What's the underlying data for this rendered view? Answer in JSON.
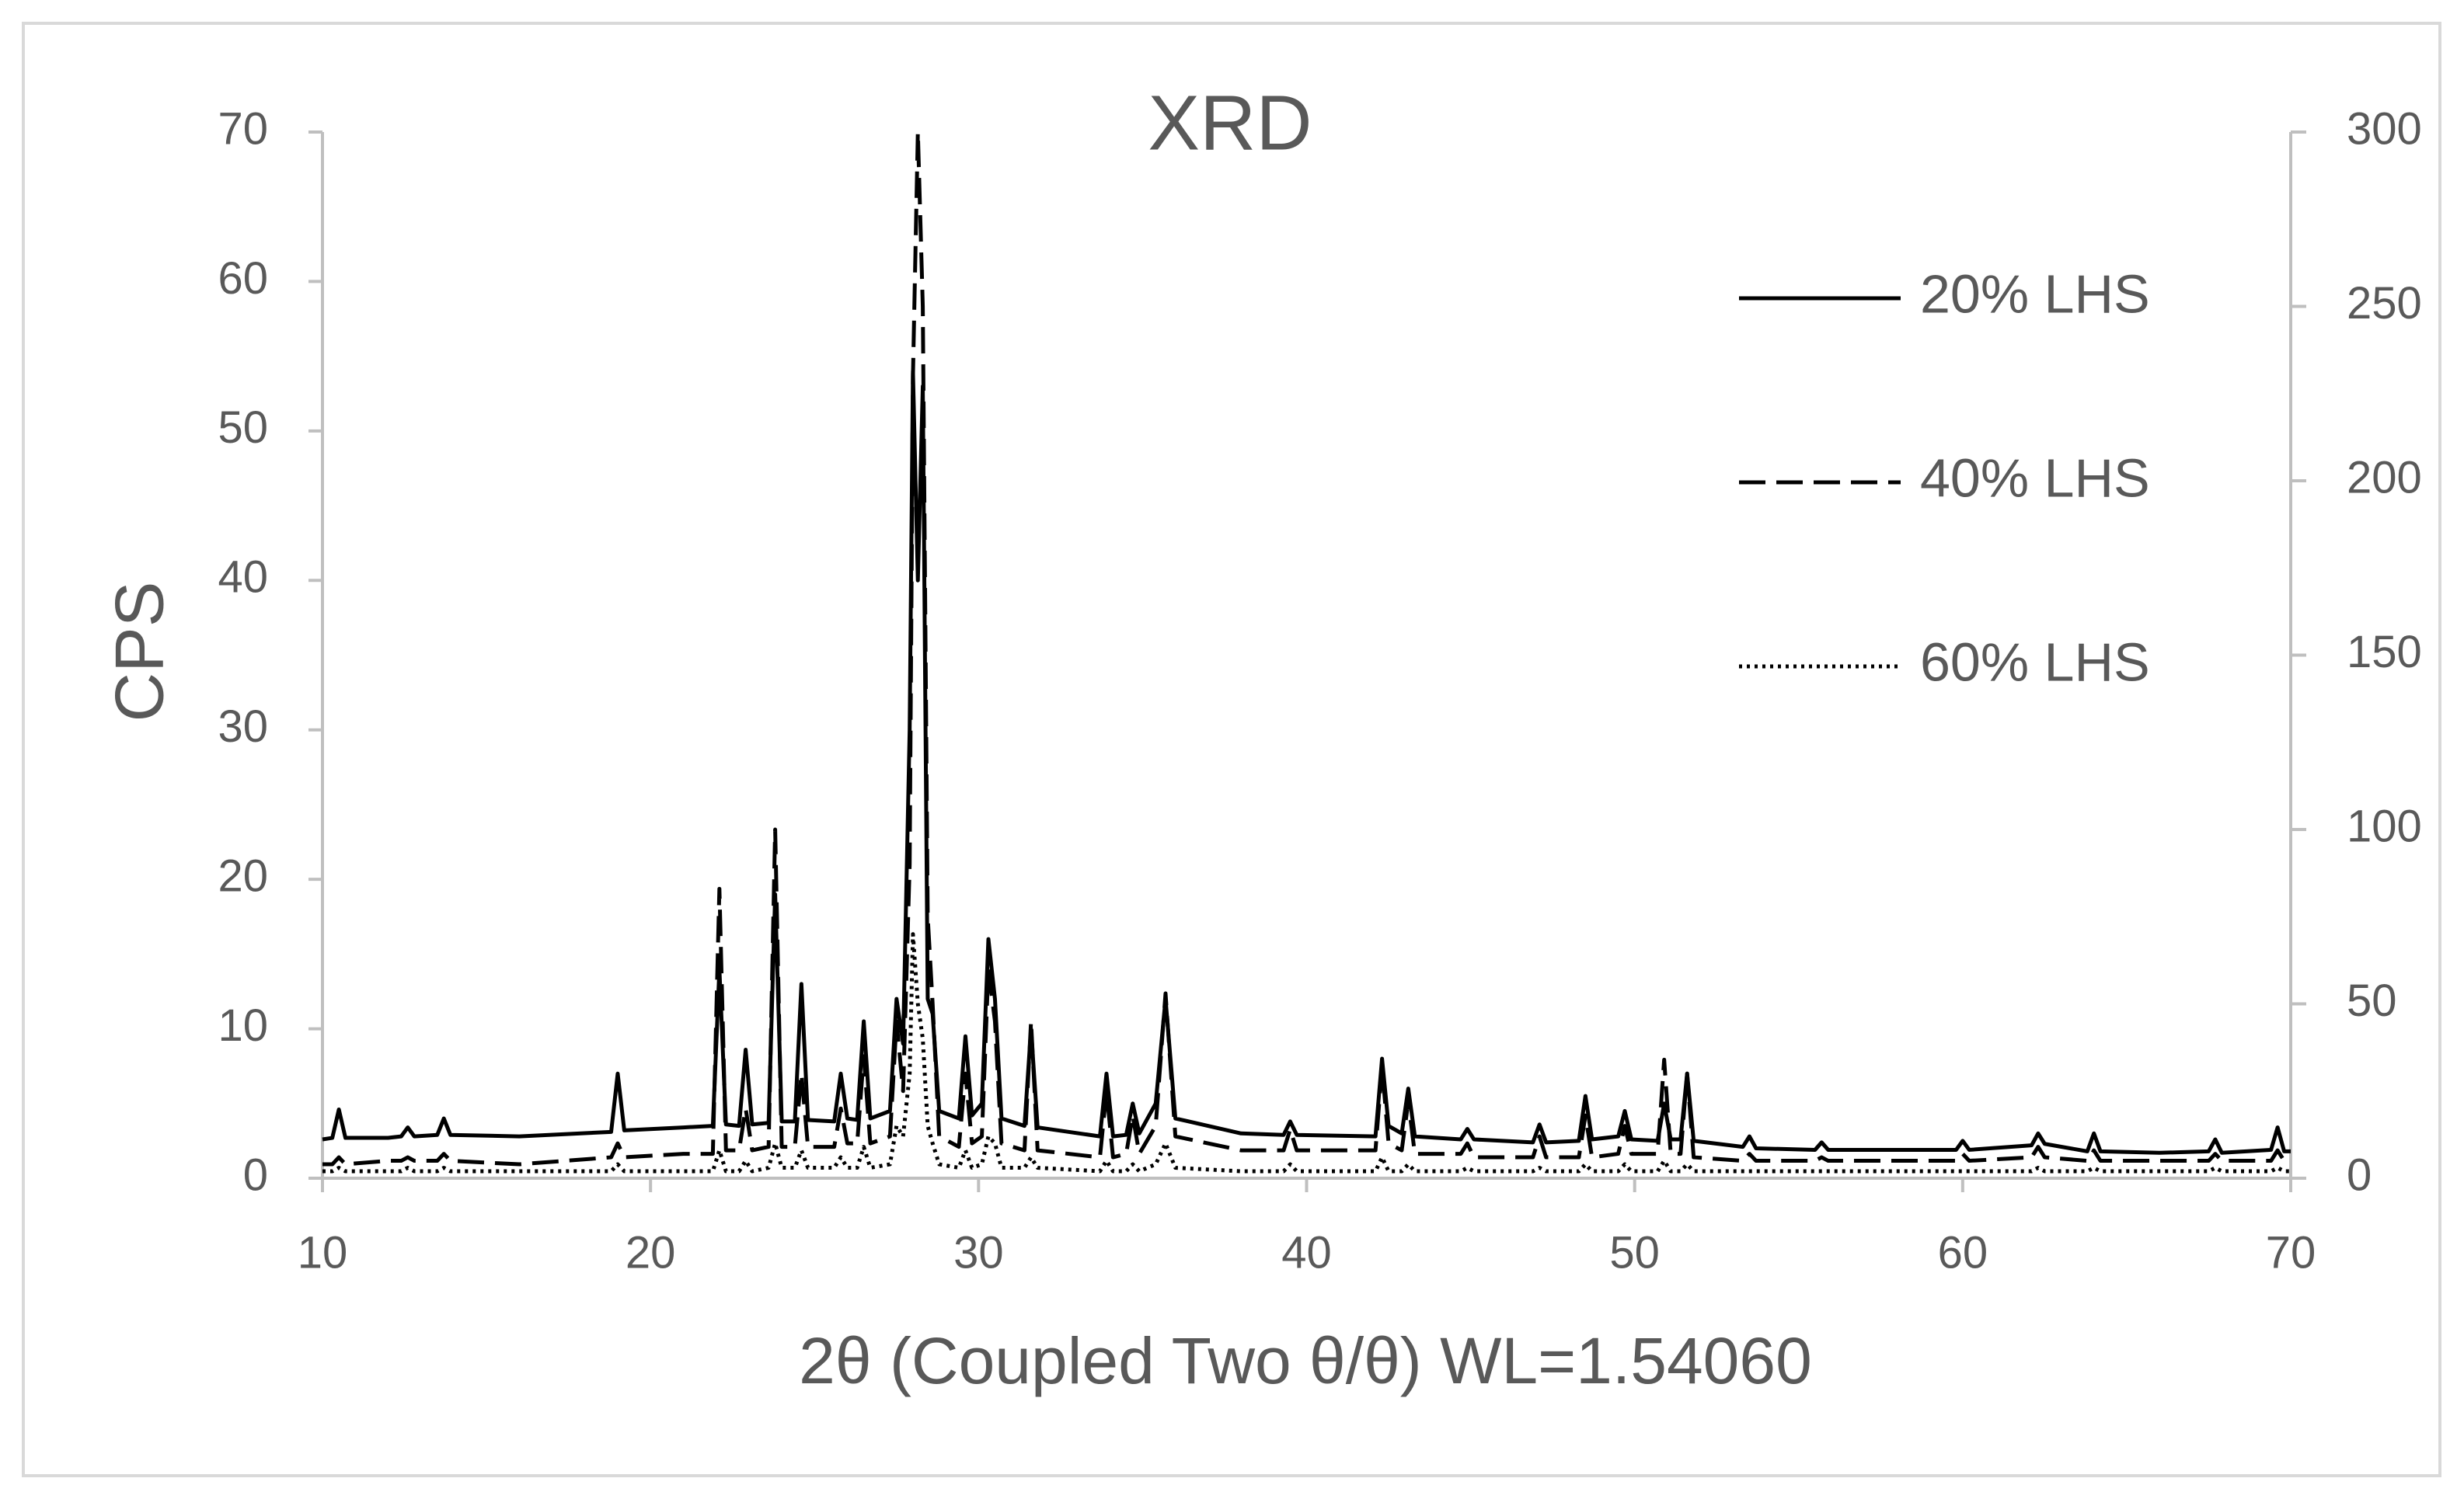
{
  "chart_data": {
    "type": "line",
    "title": "XRD",
    "x_label": "2θ (Coupled Two θ/θ) WL=1.54060",
    "y_label": "CPS",
    "xlim": [
      10,
      70
    ],
    "xticks": [
      10,
      20,
      30,
      40,
      50,
      60,
      70
    ],
    "ylim": [
      0,
      70
    ],
    "yticks": [
      0,
      10,
      20,
      30,
      40,
      50,
      60,
      70
    ],
    "y2lim": [
      0,
      300
    ],
    "y2ticks": [
      0,
      50,
      100,
      150,
      200,
      250,
      300
    ],
    "legend": "upper right",
    "x": [
      10,
      10.3,
      10.5,
      10.7,
      12,
      12.4,
      12.6,
      12.8,
      13.5,
      13.7,
      13.9,
      16,
      18.8,
      19.0,
      19.2,
      21,
      21.9,
      22.1,
      22.3,
      22.7,
      22.9,
      23.1,
      23.6,
      23.8,
      24.0,
      24.4,
      24.6,
      24.8,
      25.6,
      25.8,
      26.0,
      26.3,
      26.5,
      26.7,
      27.3,
      27.5,
      27.7,
      27.9,
      28.0,
      28.15,
      28.3,
      28.45,
      28.6,
      28.8,
      29.4,
      29.6,
      29.8,
      30.1,
      30.3,
      30.5,
      30.7,
      31.4,
      31.6,
      31.8,
      33.7,
      33.9,
      34.1,
      34.5,
      34.7,
      34.9,
      35.4,
      35.7,
      36.0,
      38,
      39.3,
      39.5,
      39.7,
      42.1,
      42.3,
      42.5,
      42.9,
      43.1,
      43.3,
      44.7,
      44.9,
      45.1,
      46.9,
      47.1,
      47.3,
      48.3,
      48.5,
      48.7,
      49.5,
      49.7,
      49.9,
      50.7,
      50.9,
      51.1,
      51.4,
      51.6,
      51.8,
      53.3,
      53.5,
      53.7,
      55.5,
      55.7,
      55.9,
      59.8,
      60,
      60.2,
      62.1,
      62.3,
      62.5,
      63.8,
      64,
      64.2,
      66,
      67.5,
      67.7,
      67.9,
      69.4,
      69.6,
      69.8,
      70
    ],
    "series": [
      {
        "name": "20% LHS",
        "color": "#000000",
        "dash": "solid",
        "axis": "y",
        "values": [
          2.6,
          2.7,
          4.6,
          2.7,
          2.7,
          2.8,
          3.4,
          2.8,
          2.9,
          4.0,
          2.9,
          2.8,
          3.1,
          7.0,
          3.2,
          3.4,
          3.5,
          14.0,
          3.6,
          3.5,
          8.6,
          3.6,
          3.7,
          19.0,
          3.8,
          3.8,
          13.0,
          3.9,
          3.8,
          7.0,
          4.0,
          3.9,
          10.5,
          4.0,
          4.5,
          12.0,
          9.0,
          30,
          54,
          40,
          53,
          12,
          11,
          4.5,
          4.0,
          9.5,
          4.2,
          5.0,
          16.0,
          12.0,
          4.0,
          3.5,
          10.0,
          3.4,
          2.8,
          7.0,
          2.8,
          2.9,
          5.0,
          3.0,
          5.0,
          12.0,
          4.0,
          3.0,
          2.9,
          3.8,
          2.9,
          2.8,
          8.0,
          3.5,
          3.0,
          6.0,
          2.8,
          2.6,
          3.3,
          2.6,
          2.4,
          3.6,
          2.4,
          2.5,
          5.5,
          2.6,
          2.8,
          4.5,
          2.6,
          2.5,
          5.0,
          2.6,
          2.6,
          7.0,
          2.5,
          2.1,
          2.8,
          2.0,
          1.9,
          2.4,
          1.9,
          1.9,
          2.5,
          1.9,
          2.2,
          3.0,
          2.3,
          1.8,
          3.0,
          1.8,
          1.7,
          1.8,
          2.6,
          1.7,
          1.9,
          3.4,
          1.8,
          1.8
        ]
      },
      {
        "name": "40% LHS",
        "color": "#000000",
        "dash": "dashed",
        "axis": "y2",
        "values": [
          4,
          4,
          6,
          4,
          5,
          5,
          6,
          5,
          5,
          7,
          5,
          4,
          6,
          10,
          6,
          7,
          7,
          83,
          8,
          8,
          20,
          8,
          9,
          100,
          9,
          9,
          30,
          9,
          9,
          20,
          10,
          10,
          35,
          10,
          12,
          45,
          25,
          90,
          230,
          300,
          250,
          75,
          50,
          12,
          9,
          30,
          10,
          12,
          60,
          45,
          10,
          8,
          45,
          8,
          6,
          25,
          6,
          7,
          18,
          7,
          15,
          53,
          12,
          8,
          8,
          14,
          8,
          8,
          32,
          10,
          8,
          22,
          7,
          7,
          10,
          6,
          6,
          12,
          6,
          6,
          18,
          6,
          7,
          15,
          7,
          7,
          34,
          7,
          7,
          30,
          6,
          5,
          7,
          5,
          5,
          6,
          5,
          5,
          7,
          5,
          6,
          9,
          6,
          5,
          8,
          5,
          5,
          5,
          7,
          5,
          5,
          8,
          5,
          5
        ]
      },
      {
        "name": "60% LHS",
        "color": "#000000",
        "dash": "dotted",
        "axis": "y2",
        "values": [
          2,
          2,
          3,
          2,
          2,
          2,
          3,
          2,
          2,
          3,
          2,
          2,
          2,
          4,
          2,
          2,
          2,
          8,
          2,
          2,
          5,
          2,
          3,
          10,
          3,
          3,
          8,
          3,
          3,
          6,
          3,
          3,
          9,
          3,
          4,
          15,
          12,
          30,
          70,
          50,
          40,
          15,
          10,
          4,
          3,
          8,
          3,
          4,
          12,
          10,
          3,
          3,
          6,
          3,
          2,
          5,
          2,
          2,
          4,
          2,
          4,
          10,
          3,
          2,
          2,
          4,
          2,
          2,
          6,
          2,
          2,
          4,
          2,
          2,
          3,
          2,
          2,
          3,
          2,
          2,
          4,
          2,
          2,
          4,
          2,
          2,
          5,
          2,
          2,
          4,
          2,
          2,
          2,
          2,
          2,
          2,
          2,
          2,
          2,
          2,
          2,
          3,
          2,
          2,
          3,
          2,
          2,
          2,
          3,
          2,
          2,
          3,
          2,
          2
        ]
      }
    ]
  }
}
